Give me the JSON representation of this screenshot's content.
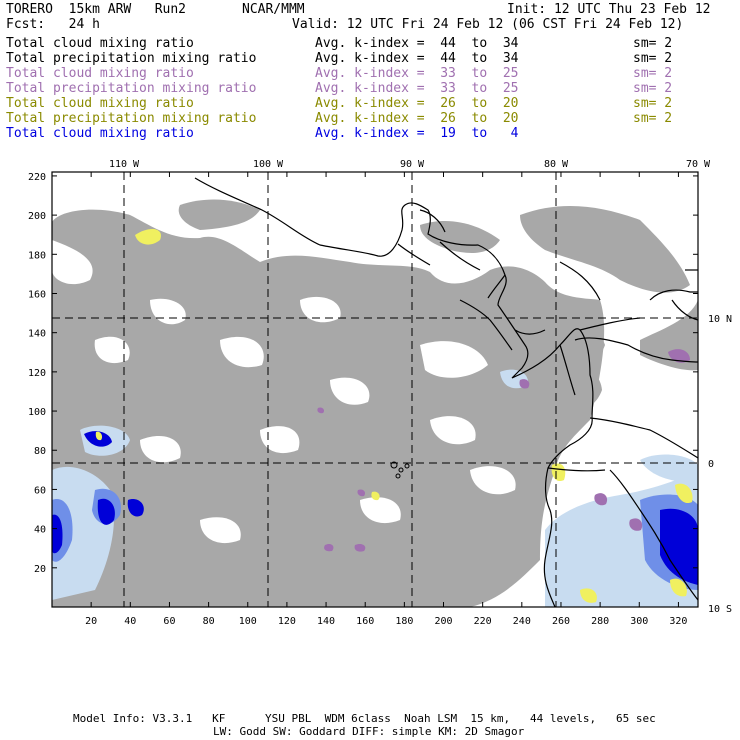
{
  "header": {
    "model": "TORERO  15km ARW   Run2",
    "org": "NCAR/MMM",
    "init": "Init: 12 UTC Thu 23 Feb 12",
    "fcst": "Fcst:   24 h",
    "valid": "Valid: 12 UTC Fri 24 Feb 12 (06 CST Fri 24 Feb 12)"
  },
  "legend": [
    {
      "field": "Total cloud mixing ratio",
      "kindex": "Avg. k-index =  44  to  34",
      "sm": "sm= 2",
      "color": "#000000"
    },
    {
      "field": "Total precipitation mixing ratio",
      "kindex": "Avg. k-index =  44  to  34",
      "sm": "sm= 2",
      "color": "#000000"
    },
    {
      "field": "Total cloud mixing ratio",
      "kindex": "Avg. k-index =  33  to  25",
      "sm": "sm= 2",
      "color": "#a070b0"
    },
    {
      "field": "Total precipitation mixing ratio",
      "kindex": "Avg. k-index =  33  to  25",
      "sm": "sm= 2",
      "color": "#a070b0"
    },
    {
      "field": "Total cloud mixing ratio",
      "kindex": "Avg. k-index =  26  to  20",
      "sm": "sm= 2",
      "color": "#8a8a00"
    },
    {
      "field": "Total precipitation mixing ratio",
      "kindex": "Avg. k-index =  26  to  20",
      "sm": "sm= 2",
      "color": "#8a8a00"
    },
    {
      "field": "Total cloud mixing ratio",
      "kindex": "Avg. k-index =  19  to   4",
      "sm": "",
      "color": "#0000e0"
    }
  ],
  "map": {
    "lon_labels": [
      "110 W",
      "100 W",
      "90 W",
      "80 W",
      "70 W"
    ],
    "lat_labels": [
      "10 N",
      "0",
      "10 S"
    ],
    "y_ticks": [
      "220",
      "200",
      "180",
      "160",
      "140",
      "120",
      "100",
      "80",
      "60",
      "40",
      "20"
    ],
    "x_ticks": [
      "20",
      "40",
      "60",
      "80",
      "100",
      "120",
      "140",
      "160",
      "180",
      "200",
      "220",
      "240",
      "260",
      "280",
      "300",
      "320"
    ],
    "colors": {
      "cloud": "#a8a8a8",
      "blue_light": "#c8dcf0",
      "blue_mid": "#6f8fe8",
      "blue_dark": "#0000d8",
      "yellow": "#f0f060",
      "purple": "#a070b0"
    }
  },
  "footer": {
    "line1": "Model Info: V3.3.1   KF      YSU PBL  WDM 6class  Noah LSM  15 km,   44 levels,   65 sec",
    "line2": "LW: Godd SW: Goddard DIFF: simple KM: 2D Smagor"
  }
}
